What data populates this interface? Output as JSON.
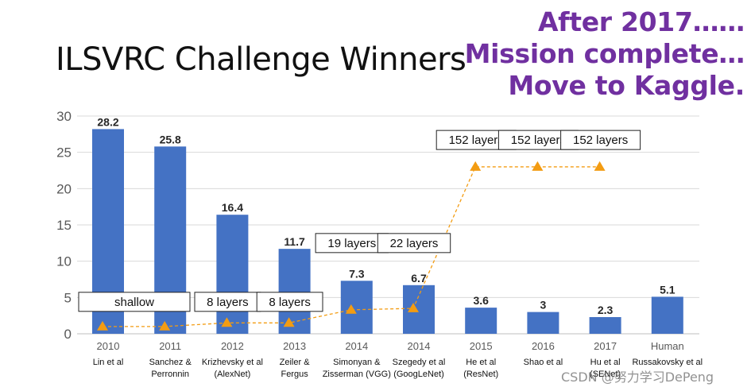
{
  "page": {
    "title": "ILSVRC Challenge Winners",
    "note_lines": [
      "After 2017……",
      "Mission complete…",
      "Move to Kaggle."
    ],
    "watermark": "CSDN @努力学习DePeng"
  },
  "chart_data": {
    "type": "bar",
    "title": "",
    "xlabel": "",
    "ylabel": "",
    "ylim": [
      0,
      30
    ],
    "yticks": [
      0,
      5,
      10,
      15,
      20,
      25,
      30
    ],
    "grid": true,
    "categories": [
      "2010",
      "2011",
      "2012",
      "2013",
      "2014",
      "2014",
      "2015",
      "2016",
      "2017",
      "Human"
    ],
    "subtitles": [
      [
        "Lin et al"
      ],
      [
        "Sanchez &",
        "Perronnin"
      ],
      [
        "Krizhevsky et al",
        "(AlexNet)"
      ],
      [
        "Zeiler &",
        "Fergus"
      ],
      [
        "Simonyan &",
        "Zisserman (VGG)"
      ],
      [
        "Szegedy et al",
        "(GoogLeNet)"
      ],
      [
        "He et al",
        "(ResNet)"
      ],
      [
        "Shao et al"
      ],
      [
        "Hu et al",
        "(SENet)"
      ],
      [
        "Russakovsky et al"
      ]
    ],
    "series": [
      {
        "type": "bar",
        "color": "#4472c4",
        "values": [
          28.2,
          25.8,
          16.4,
          11.7,
          7.3,
          6.7,
          3.6,
          3,
          2.3,
          5.1
        ],
        "labels": [
          "28.2",
          "25.8",
          "16.4",
          "11.7",
          "7.3",
          "6.7",
          "3.6",
          "3",
          "2.3",
          "5.1"
        ]
      },
      {
        "type": "line",
        "style": "dashed",
        "marker": "triangle",
        "color": "#f39c12",
        "values": [
          1,
          1,
          1.5,
          1.5,
          3.3,
          3.5,
          23,
          23,
          23,
          null
        ]
      }
    ],
    "annotations": [
      {
        "text": "shallow",
        "x_index": 0.5,
        "y": 4.4,
        "wide": true
      },
      {
        "text": "8 layers",
        "x_index": 2,
        "y": 4.4
      },
      {
        "text": "8 layers",
        "x_index": 3,
        "y": 4.4
      },
      {
        "text": "19 layers",
        "x_index": 4,
        "y": 12.5
      },
      {
        "text": "22 layers",
        "x_index": 5,
        "y": 12.5
      },
      {
        "text": "152 layers",
        "x_index": 6,
        "y": 26.7
      },
      {
        "text": "152 layers",
        "x_index": 7,
        "y": 26.7
      },
      {
        "text": "152 layers",
        "x_index": 8,
        "y": 26.7
      }
    ]
  }
}
